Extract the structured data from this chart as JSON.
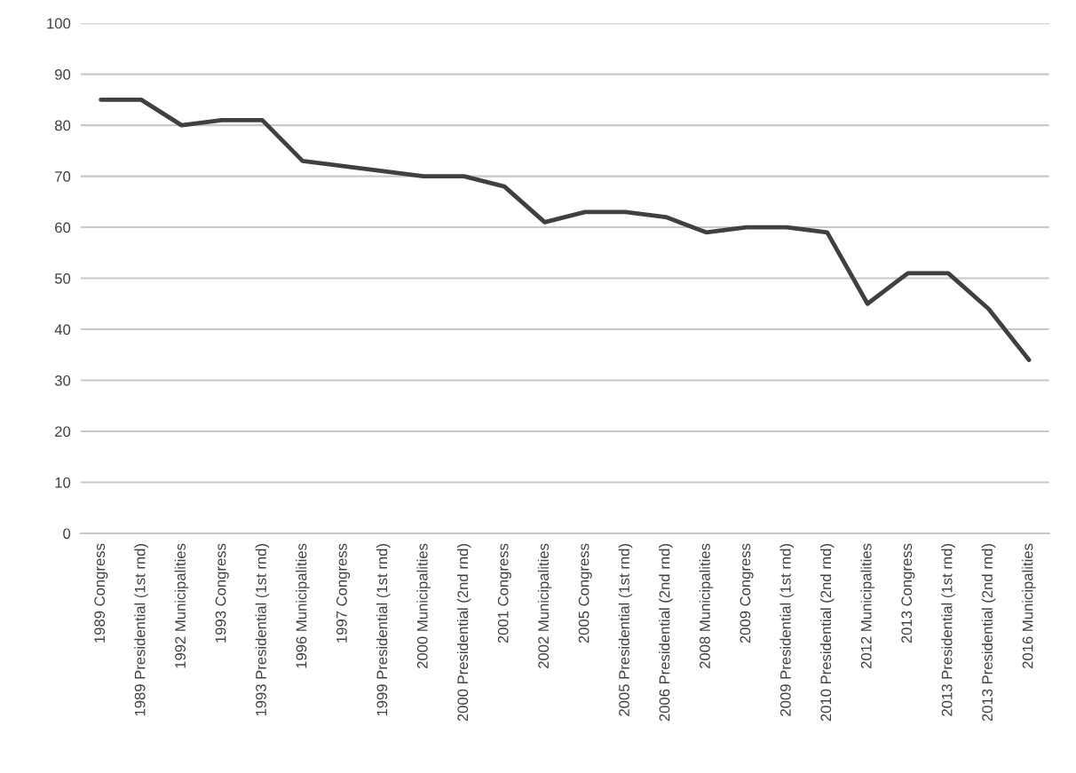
{
  "chart_data": {
    "type": "line",
    "categories": [
      "1989 Congress",
      "1989 Presidential (1st rnd)",
      "1992 Municipalities",
      "1993 Congress",
      "1993 Presidential (1st rnd)",
      "1996 Municipalities",
      "1997 Congress",
      "1999 Presidential (1st rnd)",
      "2000 Municipalities",
      "2000 Presidential (2nd rnd)",
      "2001 Congress",
      "2002 Municipalities",
      "2005 Congress",
      "2005 Presidential (1st rnd)",
      "2006 Presidential (2nd rnd)",
      "2008 Municipalities",
      "2009 Congress",
      "2009 Presidential (1st rnd)",
      "2010 Presidential (2nd rnd)",
      "2012 Municipalities",
      "2013 Congress",
      "2013 Presidential (1st rnd)",
      "2013 Presidential (2nd rnd)",
      "2016 Municipalities"
    ],
    "series": [
      {
        "color": "#404040",
        "values": [
          85,
          85,
          80,
          81,
          81,
          73,
          72,
          71,
          70,
          70,
          68,
          61,
          63,
          63,
          62,
          59,
          60,
          60,
          59,
          45,
          51,
          51,
          44,
          34
        ]
      }
    ],
    "ylim": [
      0,
      100
    ],
    "yticks": [
      0,
      10,
      20,
      30,
      40,
      50,
      60,
      70,
      80,
      90,
      100
    ],
    "grid": "y",
    "marker": "none",
    "line_style": "solid"
  }
}
